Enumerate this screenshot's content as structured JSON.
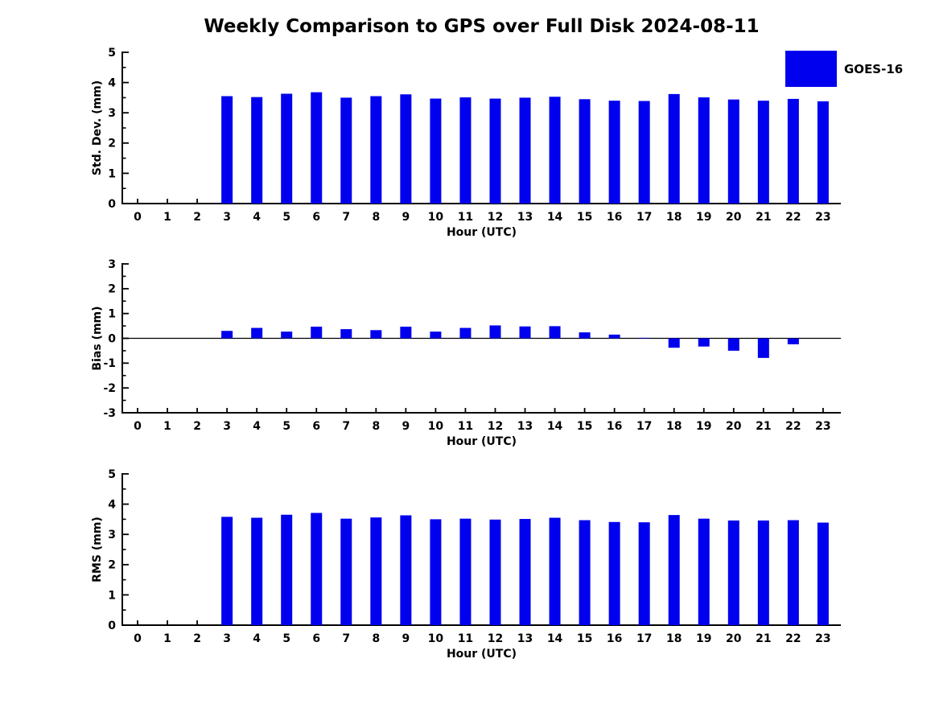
{
  "title": "Weekly Comparison to GPS over Full Disk 2024-08-11",
  "legend": {
    "label": "GOES-16",
    "color": "#0000EE"
  },
  "colors": {
    "bar": "#0000EE",
    "axis": "#000000",
    "text": "#000000",
    "background": "#FFFFFF"
  },
  "chart_data": [
    {
      "type": "bar",
      "title": "",
      "ylabel": "Std. Dev. (mm)",
      "xlabel": "Hour (UTC)",
      "ylim": [
        0,
        5
      ],
      "yticks": [
        0,
        1,
        2,
        3,
        4,
        5
      ],
      "grid": false,
      "legend_position": "top-right",
      "series_name": "GOES-16",
      "categories": [
        0,
        1,
        2,
        3,
        4,
        5,
        6,
        7,
        8,
        9,
        10,
        11,
        12,
        13,
        14,
        15,
        16,
        17,
        18,
        19,
        20,
        21,
        22,
        23
      ],
      "values": [
        null,
        null,
        null,
        3.55,
        3.52,
        3.63,
        3.68,
        3.5,
        3.55,
        3.61,
        3.47,
        3.51,
        3.47,
        3.5,
        3.53,
        3.45,
        3.4,
        3.39,
        3.62,
        3.51,
        3.44,
        3.4,
        3.46,
        3.38
      ]
    },
    {
      "type": "bar",
      "title": "",
      "ylabel": "Bias (mm)",
      "xlabel": "Hour (UTC)",
      "ylim": [
        -3,
        3
      ],
      "yticks": [
        -3,
        -2,
        -1,
        0,
        1,
        2,
        3
      ],
      "grid": false,
      "zero_line": true,
      "series_name": "GOES-16",
      "categories": [
        0,
        1,
        2,
        3,
        4,
        5,
        6,
        7,
        8,
        9,
        10,
        11,
        12,
        13,
        14,
        15,
        16,
        17,
        18,
        19,
        20,
        21,
        22,
        23
      ],
      "values": [
        null,
        null,
        null,
        0.3,
        0.42,
        0.27,
        0.47,
        0.37,
        0.33,
        0.47,
        0.27,
        0.42,
        0.52,
        0.48,
        0.49,
        0.24,
        0.15,
        0.02,
        -0.38,
        -0.33,
        -0.5,
        -0.79,
        -0.24,
        0.0
      ]
    },
    {
      "type": "bar",
      "title": "",
      "ylabel": "RMS (mm)",
      "xlabel": "Hour (UTC)",
      "ylim": [
        0,
        5
      ],
      "yticks": [
        0,
        1,
        2,
        3,
        4,
        5
      ],
      "grid": false,
      "series_name": "GOES-16",
      "categories": [
        0,
        1,
        2,
        3,
        4,
        5,
        6,
        7,
        8,
        9,
        10,
        11,
        12,
        13,
        14,
        15,
        16,
        17,
        18,
        19,
        20,
        21,
        22,
        23
      ],
      "values": [
        null,
        null,
        null,
        3.58,
        3.55,
        3.65,
        3.71,
        3.52,
        3.56,
        3.63,
        3.5,
        3.52,
        3.49,
        3.51,
        3.55,
        3.47,
        3.41,
        3.4,
        3.64,
        3.52,
        3.46,
        3.46,
        3.47,
        3.39
      ]
    }
  ]
}
